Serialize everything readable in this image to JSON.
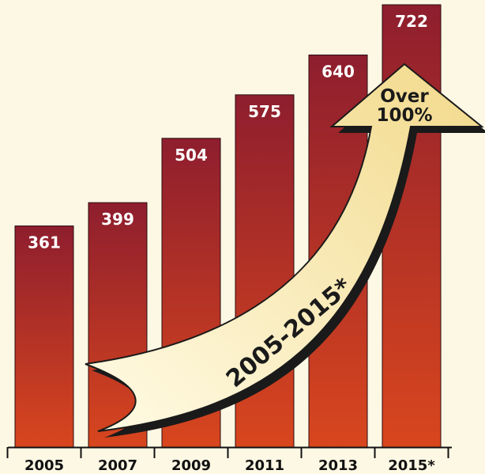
{
  "chart_data": {
    "type": "bar",
    "categories": [
      "2005",
      "2007",
      "2009",
      "2011",
      "2013",
      "2015*"
    ],
    "values": [
      361,
      399,
      504,
      575,
      640,
      722
    ],
    "ylim": [
      0,
      722
    ],
    "grid": false,
    "annotations": {
      "arrow_tip_line1": "Over",
      "arrow_tip_line2": "100%",
      "arrow_label": "2005-2015*"
    }
  },
  "colors": {
    "background": "#fdf8e4",
    "bar_top": "#8e1e2e",
    "bar_bottom": "#d8461e",
    "arrow_fill_light": "#fffbe6",
    "arrow_fill_dark": "#f2d98a",
    "arrow_shadow": "#1a1a1a"
  }
}
